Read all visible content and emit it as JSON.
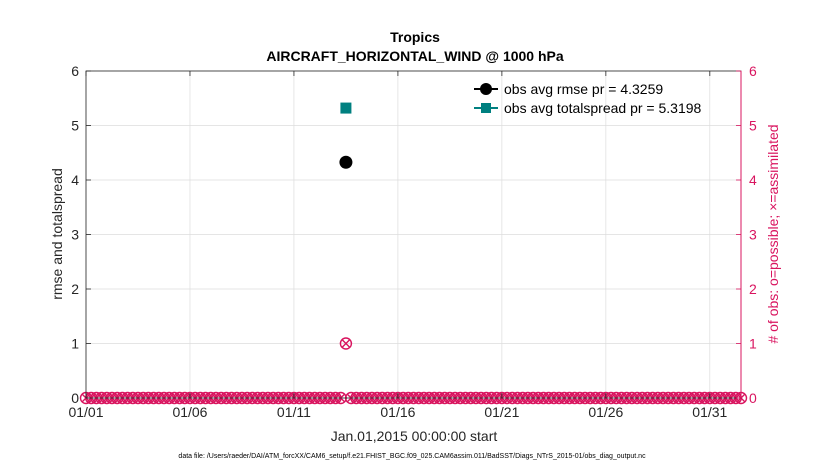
{
  "colors": {
    "rmse": "#000000",
    "spread": "#008080",
    "obs": "#d9145f",
    "grid": "#dcdcdc",
    "axis": "#262626"
  },
  "chart_data": {
    "type": "scatter",
    "title": "Tropics",
    "subtitle": "AIRCRAFT_HORIZONTAL_WIND @ 1000 hPa",
    "xlabel": "Jan.01,2015 00:00:00 start",
    "ylabel": "rmse and totalspread",
    "ylabel_right": "# of obs: o=possible; ×=assimilated",
    "xlim": [
      0,
      31.5
    ],
    "ylim": [
      0,
      6
    ],
    "ylim_right": [
      0,
      6
    ],
    "x_ticks": [
      0,
      5,
      10,
      15,
      20,
      25,
      30
    ],
    "x_tick_labels": [
      "01/01",
      "01/06",
      "01/11",
      "01/16",
      "01/21",
      "01/26",
      "01/31"
    ],
    "y_ticks": [
      0,
      1,
      2,
      3,
      4,
      5,
      6
    ],
    "y_tick_labels": [
      "0",
      "1",
      "2",
      "3",
      "4",
      "5",
      "6"
    ],
    "y_right_ticks": [
      0,
      1,
      2,
      3,
      4,
      5,
      6
    ],
    "y_right_tick_labels": [
      "0",
      "1",
      "2",
      "3",
      "4",
      "5",
      "6"
    ],
    "grid": true,
    "legend_position": "top-right",
    "series": [
      {
        "name": "obs avg rmse pr = 4.3259",
        "marker": "circle",
        "color": "#000000",
        "axis": "left",
        "points": [
          {
            "x": 12.5,
            "y": 4.3259
          }
        ]
      },
      {
        "name": "obs avg totalspread pr = 5.3198",
        "marker": "square",
        "color": "#008080",
        "axis": "left",
        "points": [
          {
            "x": 12.5,
            "y": 5.3198
          }
        ]
      }
    ],
    "obs_count": {
      "x_start": 0,
      "x_end": 31.5,
      "x_step": 0.25,
      "nonzero": [
        {
          "x": 12.5,
          "possible": 1,
          "assimilated": 1
        }
      ]
    }
  },
  "footer": "data file: /Users/raeder/DAI/ATM_forcXX/CAM6_setup/f.e21.FHIST_BGC.f09_025.CAM6assim.011/BadSST/Diags_NTrS_2015-01/obs_diag_output.nc"
}
